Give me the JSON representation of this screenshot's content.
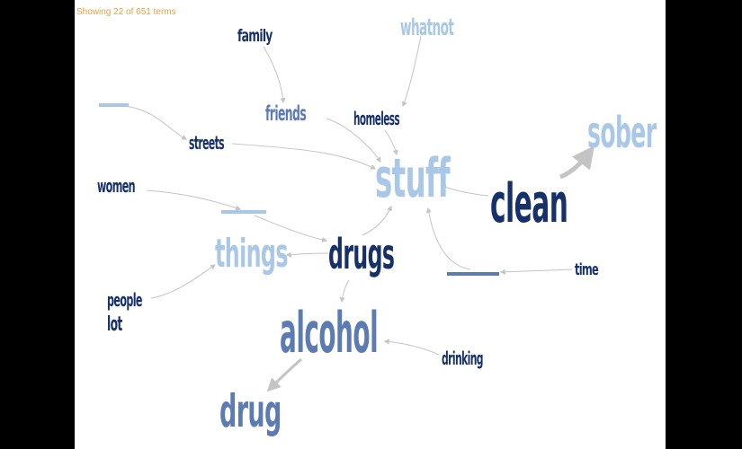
{
  "status_text": "Showing 22 of 651 terms",
  "colors": {
    "dark": "#16306a",
    "medium": "#5c7bb3",
    "light": "#a9c8e8",
    "status": "#e8a040",
    "link": "#bcbcbc"
  },
  "terms": {
    "family": "family",
    "whatnot": "whatnot",
    "friends": "friends",
    "homeless": "homeless",
    "streets": "streets",
    "sober": "sober",
    "stuff": "stuff",
    "women": "women",
    "clean": "clean",
    "things": "things",
    "drugs": "drugs",
    "time": "time",
    "people": "people",
    "lot": "lot",
    "alcohol": "alcohol",
    "drinking": "drinking",
    "drug": "drug"
  }
}
